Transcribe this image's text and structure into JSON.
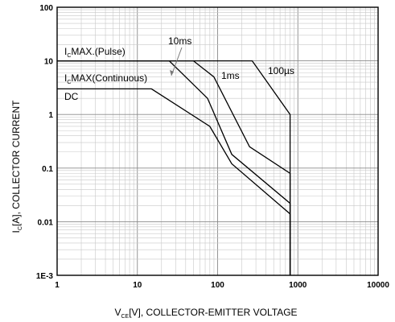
{
  "chart_data": {
    "type": "line",
    "title": "",
    "xlabel": {
      "main": "V",
      "sub": "CE",
      "rest": "[V], COLLECTOR-EMITTER VOLTAGE"
    },
    "ylabel": {
      "main": "I",
      "sub": "C",
      "rest": "[A], COLLECTOR CURRENT"
    },
    "x_scale": "log",
    "y_scale": "log",
    "xlim": [
      1,
      10000
    ],
    "ylim": [
      0.001,
      100
    ],
    "grid": true,
    "x_ticks": [
      {
        "value": 1,
        "label": "1"
      },
      {
        "value": 10,
        "label": "10"
      },
      {
        "value": 100,
        "label": "100"
      },
      {
        "value": 1000,
        "label": "1000"
      },
      {
        "value": 10000,
        "label": "10000"
      }
    ],
    "y_ticks": [
      {
        "value": 0.001,
        "label": "1E-3"
      },
      {
        "value": 0.01,
        "label": "0.01"
      },
      {
        "value": 0.1,
        "label": "0.1"
      },
      {
        "value": 1,
        "label": "1"
      },
      {
        "value": 10,
        "label": "10"
      },
      {
        "value": 100,
        "label": "100"
      }
    ],
    "series": [
      {
        "name": "DC",
        "points": [
          [
            1,
            3
          ],
          [
            15,
            3
          ],
          [
            80,
            0.6
          ],
          [
            150,
            0.12
          ],
          [
            800,
            0.014
          ],
          [
            800,
            0.001
          ]
        ]
      },
      {
        "name": "10ms",
        "points": [
          [
            1,
            10
          ],
          [
            25,
            10
          ],
          [
            75,
            2
          ],
          [
            150,
            0.18
          ],
          [
            800,
            0.022
          ],
          [
            800,
            0.001
          ]
        ]
      },
      {
        "name": "1ms",
        "points": [
          [
            1,
            10
          ],
          [
            50,
            10
          ],
          [
            90,
            5
          ],
          [
            250,
            0.25
          ],
          [
            800,
            0.08
          ],
          [
            800,
            0.001
          ]
        ]
      },
      {
        "name": "100µs",
        "points": [
          [
            1,
            10
          ],
          [
            270,
            10
          ],
          [
            800,
            1
          ],
          [
            800,
            0.001
          ]
        ]
      }
    ],
    "annotations": [
      {
        "id": "pulse",
        "main": "I",
        "sub": "C",
        "rest": "MAX.(Pulse)"
      },
      {
        "id": "continuous",
        "main": "I",
        "sub": "C",
        "rest": "MAX(Continuous)"
      },
      {
        "id": "dc",
        "text": "DC"
      },
      {
        "id": "10ms",
        "text": "10ms"
      },
      {
        "id": "1ms",
        "text": "1ms"
      },
      {
        "id": "100us",
        "text": "100µs"
      }
    ]
  }
}
